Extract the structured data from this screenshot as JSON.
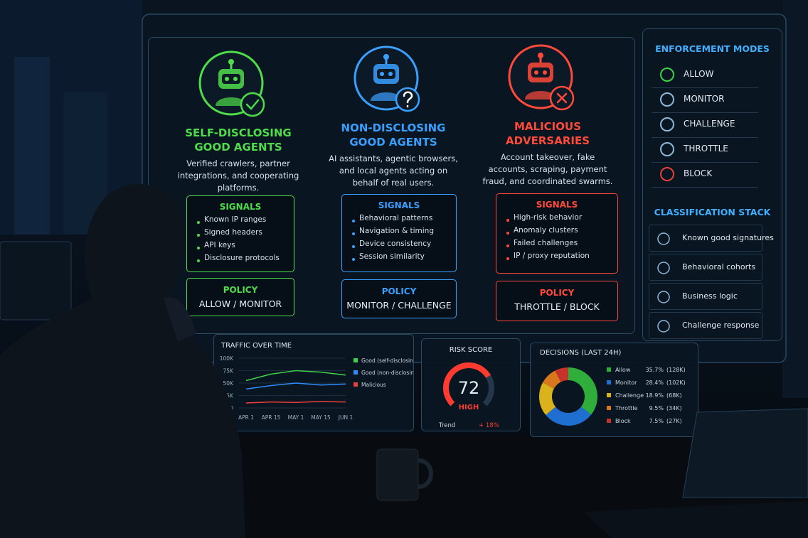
{
  "cards": [
    {
      "title": "SELF-DISCLOSING GOOD AGENTS",
      "description": "Verified crawlers, partner integrations, and cooperating platforms.",
      "signals_title": "SIGNALS",
      "signals": [
        "Known IP ranges",
        "Signed headers",
        "API keys",
        "Disclosure protocols"
      ],
      "policy_title": "POLICY",
      "policy": "ALLOW / MONITOR",
      "color": "#4fdc4a"
    },
    {
      "title": "NON-DISCLOSING GOOD AGENTS",
      "description": "AI assistants, agentic browsers, and local agents acting on behalf of real users.",
      "signals_title": "SIGNALS",
      "signals": [
        "Behavioral patterns",
        "Navigation & timing",
        "Device consistency",
        "Session similarity"
      ],
      "policy_title": "POLICY",
      "policy": "MONITOR / CHALLENGE",
      "color": "#3aa0ff"
    },
    {
      "title": "MALICIOUS ADVERSARIES",
      "description": "Account takeover, fake accounts, scraping, payment fraud, and coordinated swarms.",
      "signals_title": "SIGNALS",
      "signals": [
        "High-risk behavior",
        "Anomaly clusters",
        "Failed challenges",
        "IP / proxy reputation"
      ],
      "policy_title": "POLICY",
      "policy": "THROTTLE / BLOCK",
      "color": "#ff4a3a"
    }
  ],
  "enforcement_modes": {
    "title": "ENFORCEMENT MODES",
    "items": [
      "ALLOW",
      "MONITOR",
      "CHALLENGE",
      "THROTTLE",
      "BLOCK"
    ]
  },
  "classification_stack": {
    "title": "CLASSIFICATION STACK",
    "items": [
      "Known good signatures",
      "Behavioral cohorts",
      "Business logic",
      "Challenge response"
    ]
  },
  "chart_data": [
    {
      "type": "line",
      "title": "TRAFFIC OVER TIME",
      "categories": [
        "APR 1",
        "APR 15",
        "MAY 1",
        "MAY 15",
        "JUN 1"
      ],
      "ylim": [
        0,
        100000
      ],
      "yticks": [
        {
          "value": 100000,
          "label": "100K"
        },
        {
          "value": 75000,
          "label": "75K"
        },
        {
          "value": 50000,
          "label": "50K"
        },
        {
          "value": 25000,
          "label": "25K"
        },
        0
      ],
      "series": [
        {
          "name": "Good (self-disclosing)",
          "color": "#3fd04a",
          "values": [
            55000,
            68000,
            75000,
            72000,
            66000
          ]
        },
        {
          "name": "Good (non-disclosing)",
          "color": "#2f8cff",
          "values": [
            38000,
            45000,
            50000,
            46000,
            48000
          ]
        },
        {
          "name": "Malicious",
          "color": "#e8413a",
          "values": [
            10000,
            12000,
            11000,
            13000,
            12000
          ]
        }
      ]
    },
    {
      "type": "gauge",
      "title": "RISK SCORE",
      "value": 72,
      "level": "HIGH",
      "range": [
        0,
        100
      ],
      "trend_label": "Trend",
      "trend": "+ 18%"
    },
    {
      "type": "pie",
      "title": "DECISIONS (LAST 24H)",
      "categories": [
        "Allow",
        "Monitor",
        "Challenge",
        "Throttle",
        "Block"
      ],
      "values": [
        35.7,
        28.4,
        18.9,
        9.5,
        7.5
      ],
      "value_labels": [
        "35.7%",
        "28.4%",
        "18.9%",
        "9.5%",
        "7.5%"
      ],
      "count_labels": [
        "(128K)",
        "(102K)",
        "(68K)",
        "(34K)",
        "(27K)"
      ],
      "colors": [
        "#2fae3c",
        "#1f6fd0",
        "#d9b21c",
        "#d9771c",
        "#c8322d"
      ]
    }
  ]
}
